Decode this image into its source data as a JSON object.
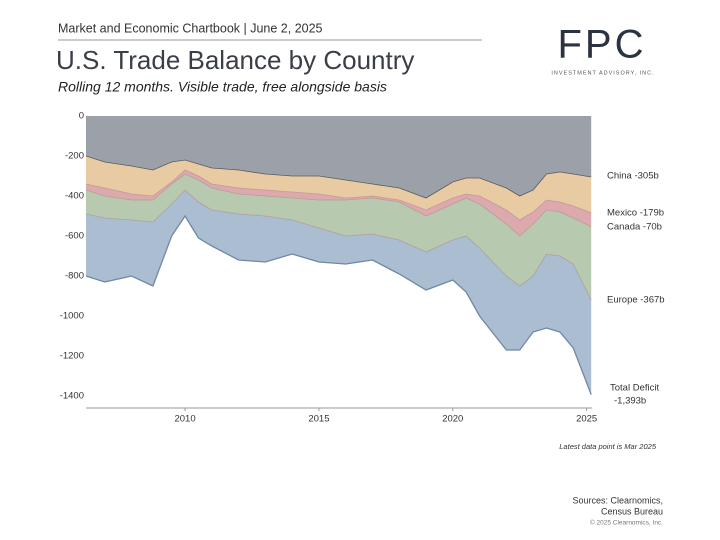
{
  "chart_data": {
    "type": "stacked_area",
    "header": "Market and Economic Chartbook | June 2, 2025",
    "title": "U.S. Trade Balance by Country",
    "subtitle": "Rolling 12 months. Visible trade, free alongside basis",
    "logo": {
      "mark": "FPC",
      "tagline": "INVESTMENT ADVISORY, INC."
    },
    "note": "Latest data point is Mar 2025",
    "sources": [
      "Sources: Clearnomics,",
      "Census Bureau"
    ],
    "copyright": "© 2025 Clearnomics, Inc.",
    "total_label": [
      "Total Deficit",
      "-1,393b"
    ],
    "x": [
      2006.3,
      2007,
      2008,
      2008.8,
      2009.5,
      2010,
      2010.5,
      2011,
      2012,
      2013,
      2014,
      2015,
      2016,
      2017,
      2018,
      2019,
      2020,
      2020.5,
      2021,
      2022,
      2022.5,
      2023,
      2023.5,
      2024,
      2024.5,
      2025.17
    ],
    "series": [
      {
        "name": "China -305b",
        "color": "#9ca1a9",
        "values": [
          -200,
          -230,
          -250,
          -270,
          -230,
          -220,
          -240,
          -260,
          -270,
          -290,
          -300,
          -300,
          -320,
          -340,
          -360,
          -410,
          -330,
          -310,
          -310,
          -360,
          -400,
          -370,
          -290,
          -280,
          -290,
          -305
        ]
      },
      {
        "name": "Mexico -179b",
        "color": "#e9cba3",
        "values": [
          -140,
          -130,
          -140,
          -130,
          -100,
          -50,
          -60,
          -80,
          -90,
          -80,
          -80,
          -90,
          -90,
          -60,
          -60,
          -60,
          -80,
          -80,
          -90,
          -110,
          -120,
          -110,
          -130,
          -150,
          -160,
          -179
        ]
      },
      {
        "name": "Canada -70b",
        "color": "#dcaaae",
        "values": [
          -30,
          -40,
          -30,
          -20,
          -10,
          -20,
          -20,
          -20,
          -30,
          -30,
          -30,
          -30,
          -10,
          -10,
          -10,
          -30,
          -30,
          -20,
          -40,
          -70,
          -80,
          -60,
          -50,
          -50,
          -60,
          -70
        ]
      },
      {
        "name": "Europe -367b",
        "color": "#b7cab0",
        "values": [
          -120,
          -110,
          -100,
          -110,
          -100,
          -80,
          -110,
          -110,
          -100,
          -100,
          -110,
          -140,
          -180,
          -180,
          -190,
          -180,
          -180,
          -190,
          -220,
          -260,
          -250,
          -260,
          -220,
          -220,
          -230,
          -367
        ]
      },
      {
        "color": "#aabdd1",
        "values": [
          -310,
          -320,
          -280,
          -320,
          -160,
          -130,
          -180,
          -180,
          -230,
          -230,
          -170,
          -170,
          -140,
          -130,
          -170,
          -190,
          -200,
          -280,
          -340,
          -370,
          -320,
          -280,
          -370,
          -380,
          -420,
          -472
        ]
      }
    ],
    "xlim": [
      2006.3,
      2025.2
    ],
    "xticks": [
      2010,
      2015,
      2020,
      2025
    ],
    "ylim": [
      -1460,
      0
    ],
    "yticks": [
      0,
      -200,
      -400,
      -600,
      -800,
      -1000,
      -1200,
      -1400
    ]
  }
}
